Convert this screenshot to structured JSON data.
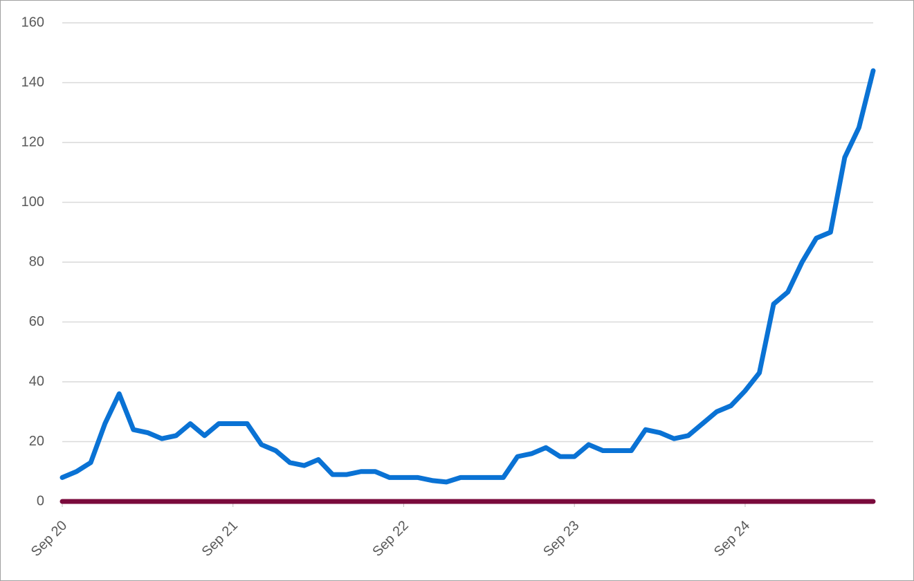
{
  "chart_data": {
    "type": "line",
    "categories": [
      "Sep 20",
      null,
      null,
      null,
      null,
      null,
      null,
      null,
      null,
      null,
      null,
      null,
      "Sep 21",
      null,
      null,
      null,
      null,
      null,
      null,
      null,
      null,
      null,
      null,
      null,
      "Sep 22",
      null,
      null,
      null,
      null,
      null,
      null,
      null,
      null,
      null,
      null,
      null,
      "Sep 23",
      null,
      null,
      null,
      null,
      null,
      null,
      null,
      null,
      null,
      null,
      null,
      "Sep 24",
      null,
      null,
      null,
      null,
      null,
      null,
      null,
      null,
      null
    ],
    "series": [
      {
        "color": "#0a72d4",
        "values": [
          8,
          10,
          13,
          26,
          36,
          24,
          23,
          21,
          22,
          26,
          22,
          26,
          26,
          26,
          19,
          17,
          13,
          12,
          14,
          9,
          9,
          10,
          10,
          8,
          8,
          8,
          7,
          6.5,
          8,
          8,
          8,
          8,
          15,
          16,
          18,
          15,
          15,
          19,
          17,
          17,
          17,
          24,
          23,
          21,
          22,
          26,
          30,
          32,
          37,
          43,
          66,
          70,
          80,
          88,
          90,
          115,
          125,
          144
        ]
      },
      {
        "color": "#7a0a3c",
        "values": [
          0,
          0,
          0,
          0,
          0,
          0,
          0,
          0,
          0,
          0,
          0,
          0,
          0,
          0,
          0,
          0,
          0,
          0,
          0,
          0,
          0,
          0,
          0,
          0,
          0,
          0,
          0,
          0,
          0,
          0,
          0,
          0,
          0,
          0,
          0,
          0,
          0,
          0,
          0,
          0,
          0,
          0,
          0,
          0,
          0,
          0,
          0,
          0,
          0,
          0,
          0,
          0,
          0,
          0,
          0,
          0,
          0,
          0
        ]
      }
    ],
    "ylim": [
      0,
      160
    ],
    "yticks": [
      0,
      20,
      40,
      60,
      80,
      100,
      120,
      140,
      160
    ],
    "grid": true
  }
}
